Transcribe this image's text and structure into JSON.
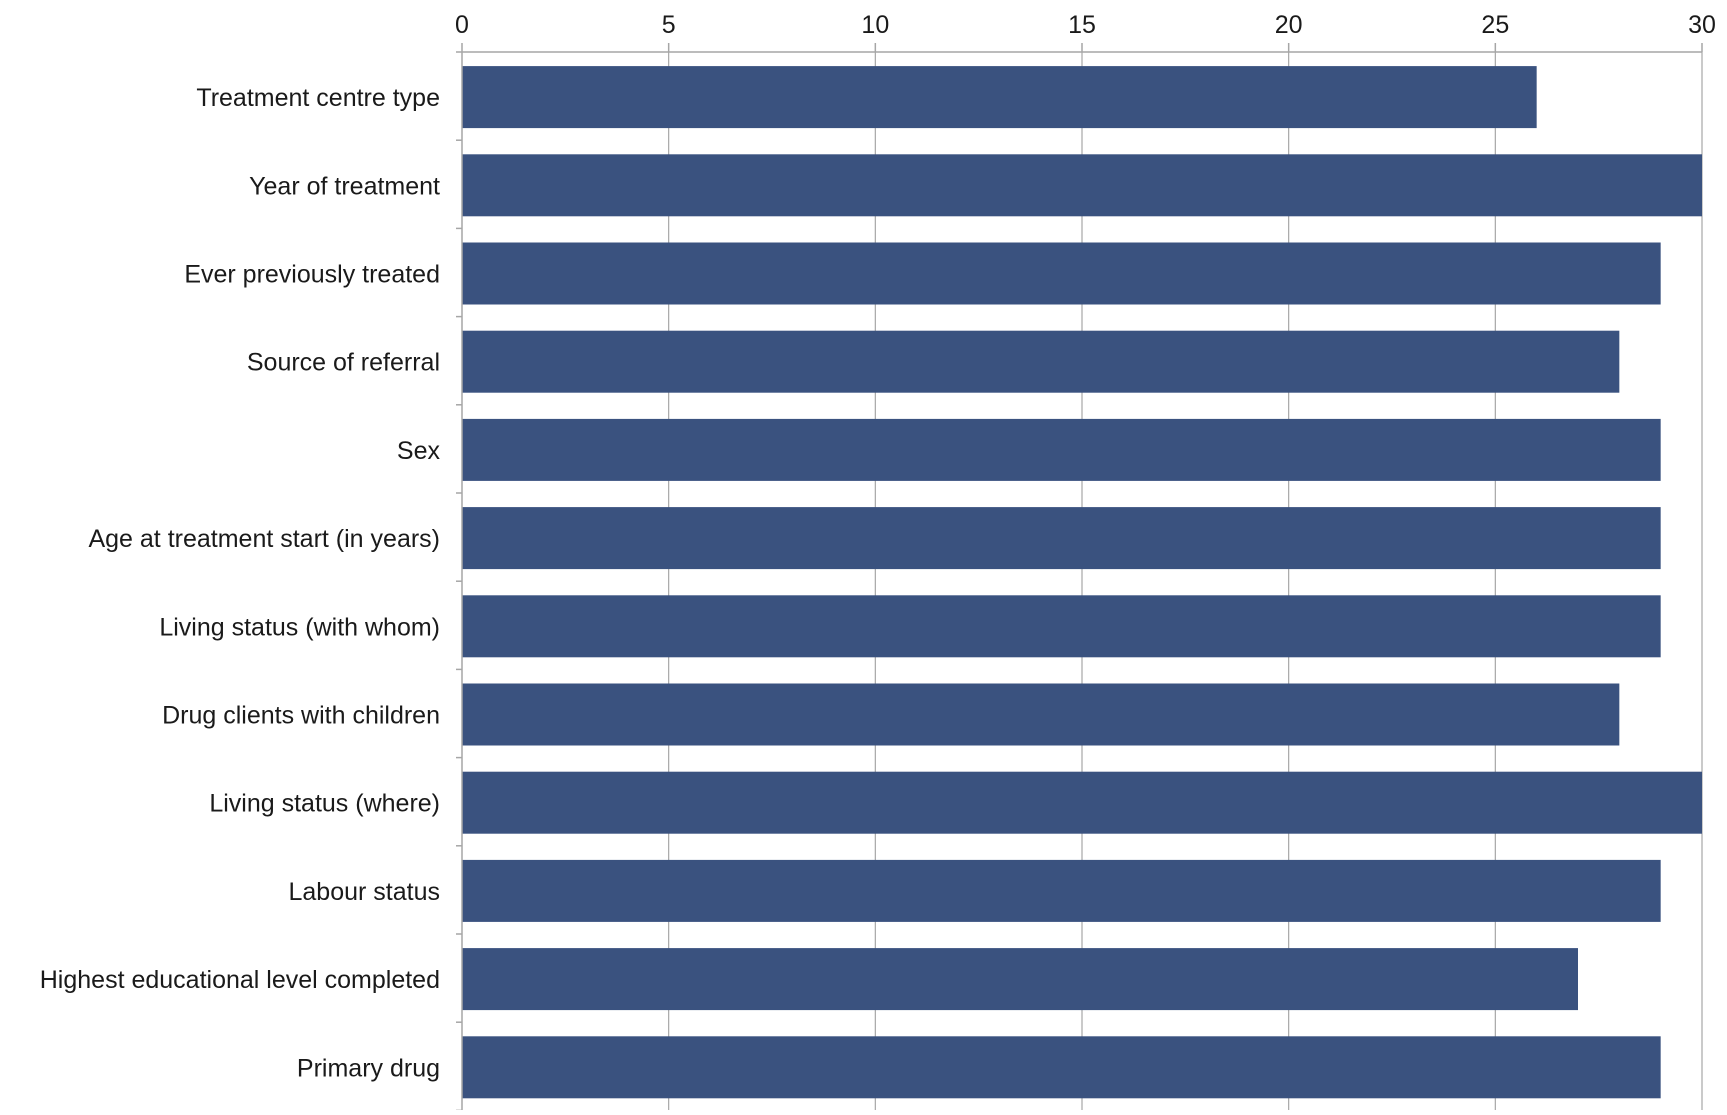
{
  "chart_data": {
    "type": "bar",
    "orientation": "horizontal",
    "categories": [
      "Treatment centre type",
      "Year of treatment",
      "Ever previously treated",
      "Source of referral",
      "Sex",
      "Age at treatment start (in years)",
      "Living status (with whom)",
      "Drug clients with children",
      "Living status (where)",
      "Labour status",
      "Highest educational level completed",
      "Primary drug"
    ],
    "values": [
      26,
      30,
      29,
      28,
      29,
      29,
      29,
      28,
      30,
      29,
      27,
      29
    ],
    "xlim": [
      0,
      30
    ],
    "xticks": [
      0,
      5,
      10,
      15,
      20,
      25,
      30
    ],
    "x_axis_position": "top",
    "grid": "vertical",
    "title": "",
    "xlabel": "",
    "ylabel": "",
    "colors": {
      "bar": "#3a527f",
      "grid": "#a6a6a6",
      "axis": "#a6a6a6"
    }
  }
}
